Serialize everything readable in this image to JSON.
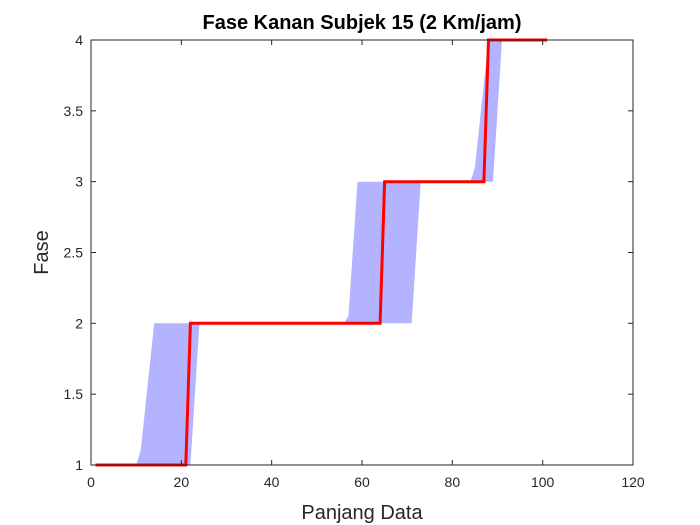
{
  "chart_data": {
    "type": "line",
    "title": "Fase Kanan Subjek 15 (2 Km/jam)",
    "xlabel": "Panjang Data",
    "ylabel": "Fase",
    "xlim": [
      0,
      120
    ],
    "ylim": [
      1,
      4
    ],
    "xticks": [
      0,
      20,
      40,
      60,
      80,
      100,
      120
    ],
    "xtick_labels": [
      "0",
      "20",
      "40",
      "60",
      "80",
      "100",
      "120"
    ],
    "yticks": [
      1,
      1.5,
      2,
      2.5,
      3,
      3.5,
      4
    ],
    "ytick_labels": [
      "1",
      "1.5",
      "2",
      "2.5",
      "3",
      "3.5",
      "4"
    ],
    "grid": false,
    "series": [
      {
        "kind": "line",
        "color": "#ff0000",
        "x": [
          1,
          21,
          22,
          64,
          65,
          87,
          88,
          101
        ],
        "y": [
          1,
          1,
          2,
          2,
          3,
          3,
          4,
          4
        ]
      }
    ],
    "band": {
      "kind": "area",
      "color": "#b3b3ff",
      "lower": {
        "x": [
          1,
          22,
          24,
          71,
          73,
          89,
          91,
          101
        ],
        "y": [
          1,
          1,
          2,
          2,
          3,
          3,
          4,
          4
        ]
      },
      "upper": {
        "x": [
          1,
          10,
          11,
          14,
          56,
          57,
          59,
          84,
          85,
          88,
          101
        ],
        "y": [
          1,
          1,
          1.1,
          2,
          2,
          2.05,
          3,
          3,
          3.1,
          4,
          4
        ]
      }
    }
  }
}
